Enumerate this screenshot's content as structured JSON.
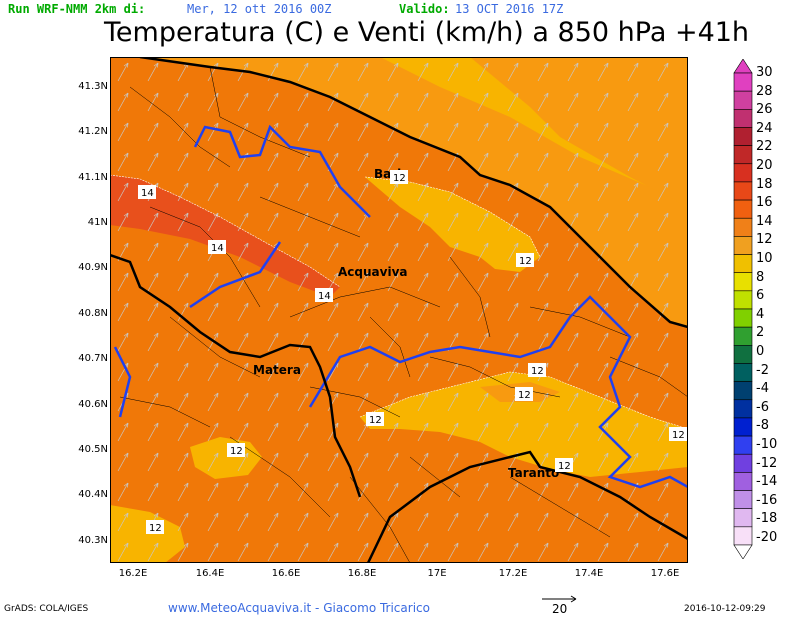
{
  "header": {
    "run": "Run WRF-NMM 2km di:",
    "run_date": "Mer, 12 ott 2016 00Z",
    "valid_label": "Valido:",
    "valid_date": "13 OCT 2016 17Z",
    "title": "Temperatura (C) e Venti (km/h) a 850 hPa +41h"
  },
  "axes": {
    "y_labels": [
      "41.3N",
      "41.2N",
      "41.1N",
      "41N",
      "40.9N",
      "40.8N",
      "40.7N",
      "40.6N",
      "40.5N",
      "40.4N",
      "40.3N"
    ],
    "x_labels": [
      "16.2E",
      "16.4E",
      "16.6E",
      "16.8E",
      "17E",
      "17.2E",
      "17.4E",
      "17.6E"
    ]
  },
  "cities": [
    {
      "name": "Bari"
    },
    {
      "name": "Acquaviva"
    },
    {
      "name": "Matera"
    },
    {
      "name": "Taranto"
    }
  ],
  "contour_labels": [
    "14",
    "14",
    "14",
    "12",
    "12",
    "12",
    "12",
    "12",
    "12",
    "12",
    "12",
    "12"
  ],
  "colorbar": {
    "labels": [
      "30",
      "28",
      "26",
      "24",
      "22",
      "20",
      "18",
      "16",
      "14",
      "12",
      "10",
      "8",
      "6",
      "4",
      "2",
      "0",
      "-2",
      "-4",
      "-6",
      "-8",
      "-10",
      "-12",
      "-14",
      "-16",
      "-18",
      "-20"
    ],
    "colors": [
      "#e040c0",
      "#d040a0",
      "#c03070",
      "#b02030",
      "#c02828",
      "#d83020",
      "#e84818",
      "#f06010",
      "#f08018",
      "#f0a020",
      "#f0c000",
      "#e8e000",
      "#c0e000",
      "#80d000",
      "#30a030",
      "#107040",
      "#006060",
      "#004070",
      "#0030a0",
      "#0020d0",
      "#3040f0",
      "#7040e0",
      "#a060e0",
      "#c090e8",
      "#e0b8f0",
      "#f8e0f8"
    ]
  },
  "colors": {
    "orange_13": "#f07808",
    "orange_11": "#f89a10",
    "amber_10": "#f8b400",
    "red_14": "#e8501c",
    "coast": "#000000",
    "border": "#2040f0"
  },
  "footer": {
    "grads": "GrADS: COLA/IGES",
    "site": "www.MeteoAcquaviva.it  -  Giacomo Tricarico",
    "ref_vector": "20",
    "timestamp": "2016-10-12-09:29"
  }
}
